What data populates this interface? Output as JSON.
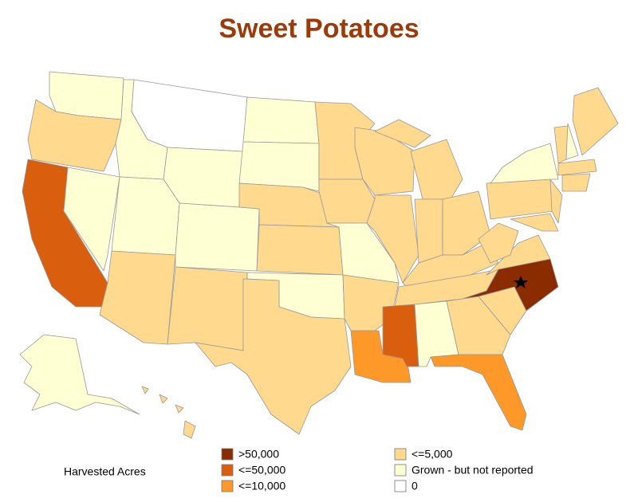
{
  "title": "Sweet Potatoes",
  "legend": {
    "title": "Harvested Acres",
    "items": [
      {
        "label": ">50,000",
        "color": "#8b2c00"
      },
      {
        "label": "<=50,000",
        "color": "#d95f0e"
      },
      {
        "label": "<=10,000",
        "color": "#fe9929"
      },
      {
        "label": "<=5,000",
        "color": "#fed98e"
      },
      {
        "label": "Grown - but not reported",
        "color": "#ffffd4"
      },
      {
        "label": "0",
        "color": "#ffffff"
      }
    ]
  }
}
